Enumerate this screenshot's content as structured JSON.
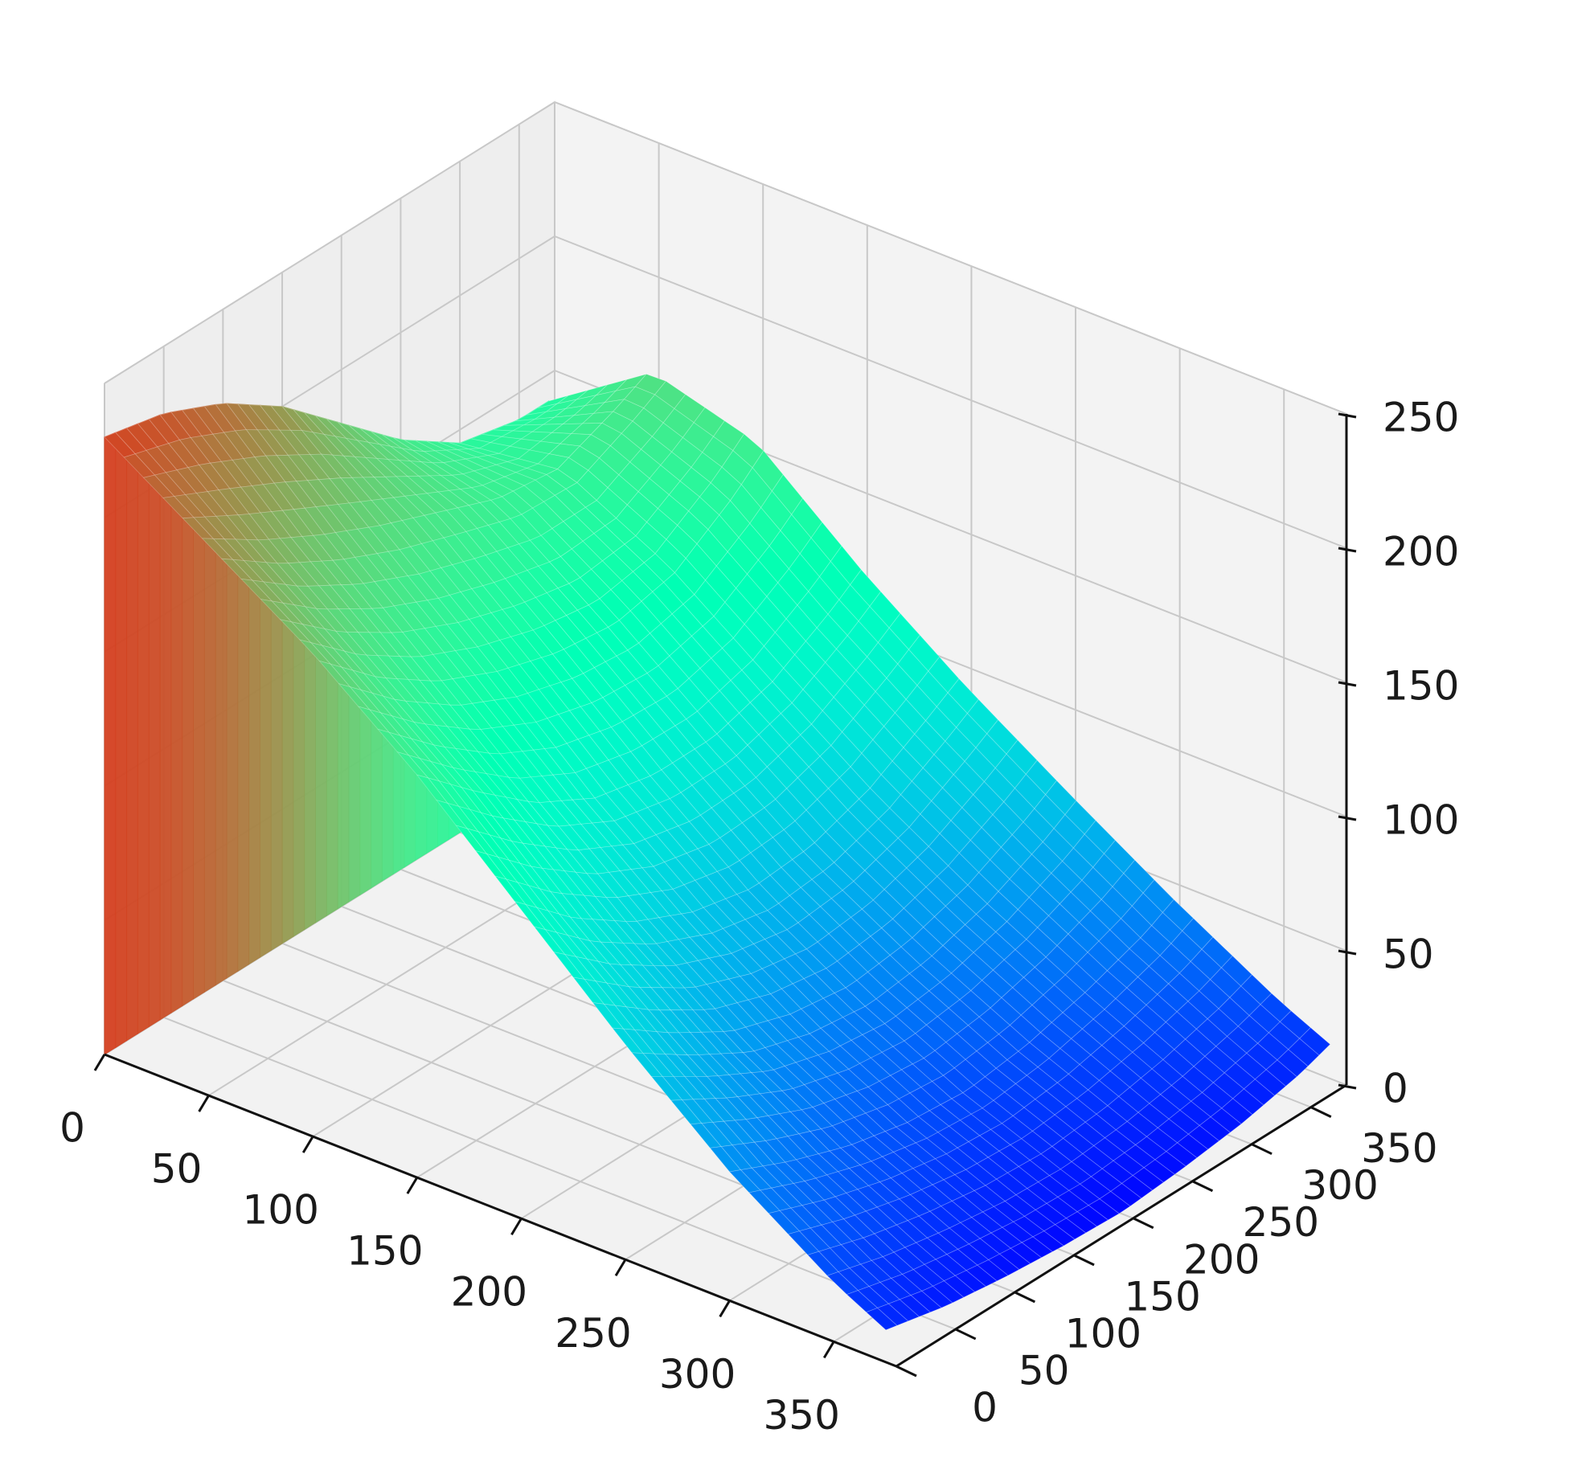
{
  "chart_data": {
    "type": "surface",
    "title": "",
    "xlabel": "",
    "ylabel": "",
    "zlabel": "",
    "colormap": "rainbow",
    "grid": true,
    "xlim": [
      0,
      380
    ],
    "ylim": [
      0,
      380
    ],
    "zlim": [
      0,
      250
    ],
    "x_ticks": [
      0,
      50,
      100,
      150,
      200,
      250,
      300,
      350
    ],
    "y_ticks": [
      0,
      50,
      100,
      150,
      200,
      250,
      300,
      350
    ],
    "z_ticks": [
      0,
      50,
      100,
      150,
      200,
      250
    ],
    "x_tick_labels": [
      "0",
      "50",
      "100",
      "150",
      "200",
      "250",
      "300",
      "350"
    ],
    "y_tick_labels": [
      "0",
      "50",
      "100",
      "150",
      "200",
      "250",
      "300",
      "350"
    ],
    "z_tick_labels": [
      "0",
      "50",
      "100",
      "150",
      "200",
      "250"
    ],
    "surface": {
      "x": [
        0,
        50,
        100,
        150,
        200,
        250,
        300,
        350,
        375
      ],
      "y": [
        0,
        50,
        100,
        150,
        200,
        250,
        300,
        350,
        375
      ],
      "z": [
        [
          230,
          225,
          215,
          200,
          180,
          160,
          145,
          140,
          140
        ],
        [
          205,
          190,
          178,
          168,
          160,
          152,
          150,
          160,
          166
        ],
        [
          180,
          160,
          145,
          135,
          128,
          125,
          130,
          145,
          155
        ],
        [
          150,
          130,
          112,
          100,
          95,
          95,
          102,
          115,
          123
        ],
        [
          115,
          95,
          80,
          70,
          65,
          67,
          75,
          88,
          95
        ],
        [
          80,
          65,
          52,
          45,
          42,
          45,
          52,
          63,
          70
        ],
        [
          48,
          38,
          30,
          25,
          23,
          26,
          32,
          40,
          46
        ],
        [
          22,
          16,
          12,
          9,
          8,
          10,
          14,
          20,
          24
        ],
        [
          12,
          7,
          4,
          2,
          1,
          3,
          6,
          11,
          15
        ]
      ],
      "floor_wall_at_x": 0
    }
  }
}
